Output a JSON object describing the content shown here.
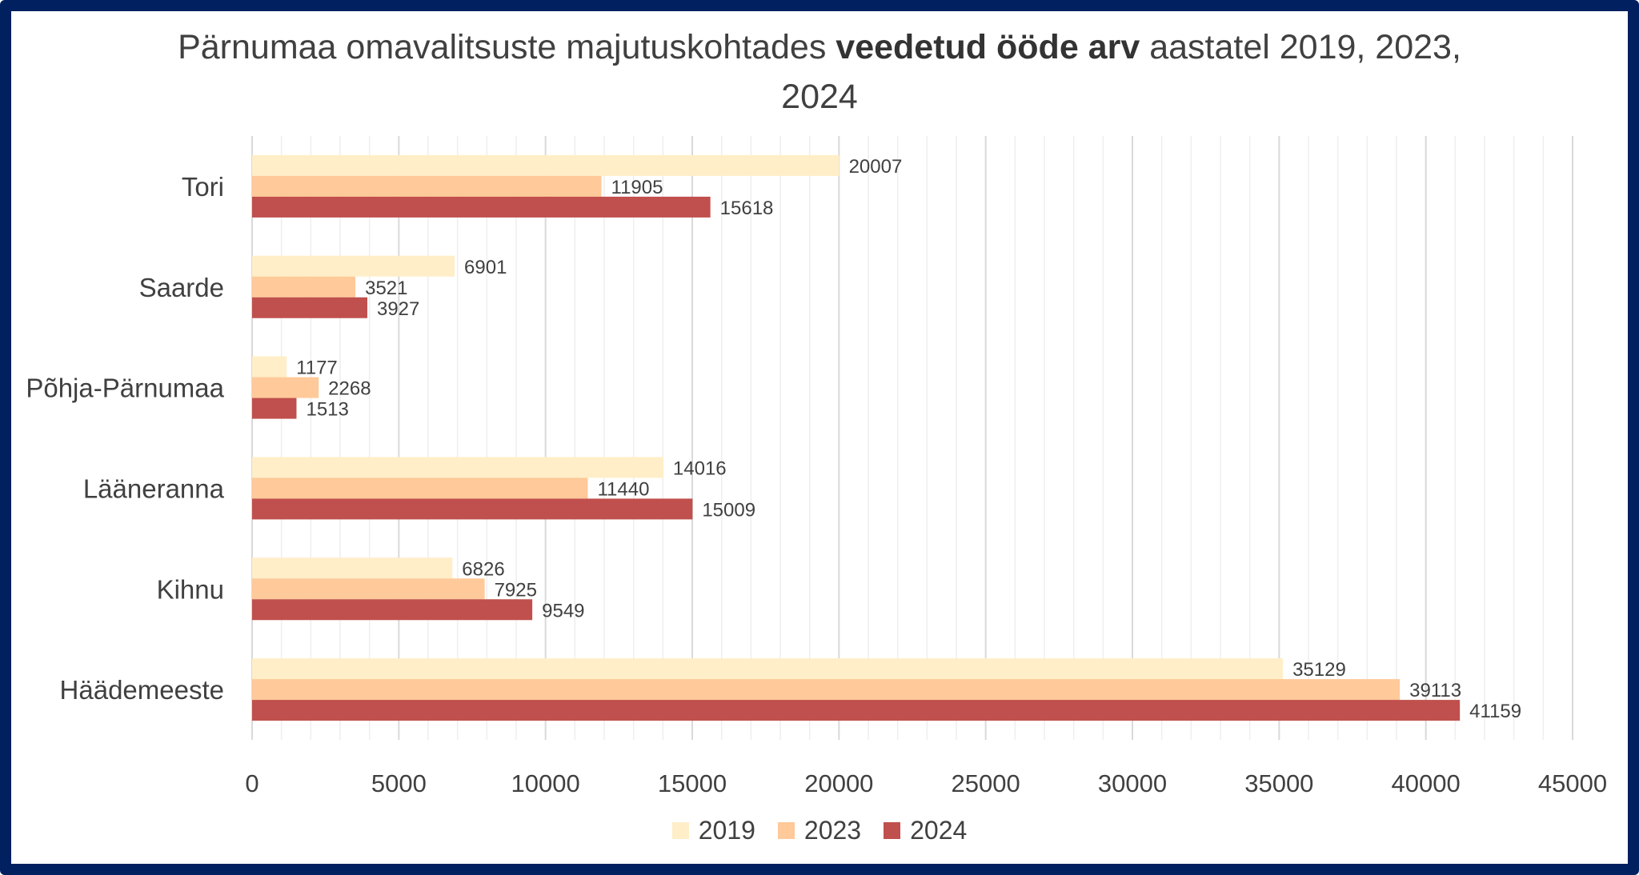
{
  "chart_data": {
    "type": "bar",
    "orientation": "horizontal",
    "title_parts": [
      {
        "text": "Pärnumaa omavalitsuste majutuskohtades ",
        "bold": false
      },
      {
        "text": "veedetud ööde arv",
        "bold": true
      },
      {
        "text": " aastatel 2019, 2023, 2024",
        "bold": false
      }
    ],
    "categories": [
      "Tori",
      "Saarde",
      "Põhja-Pärnumaa",
      "Lääneranna",
      "Kihnu",
      "Häädemeeste"
    ],
    "series": [
      {
        "name": "2019",
        "color": "#FFEEC8",
        "values": [
          20007,
          6901,
          1177,
          14016,
          6826,
          35129
        ]
      },
      {
        "name": "2023",
        "color": "#FFC999",
        "values": [
          11905,
          3521,
          2268,
          11440,
          7925,
          39113
        ]
      },
      {
        "name": "2024",
        "color": "#C0504D",
        "values": [
          15618,
          3927,
          1513,
          15009,
          9549,
          41159
        ]
      }
    ],
    "xlim": [
      0,
      45000
    ],
    "xticks": [
      0,
      5000,
      10000,
      15000,
      20000,
      25000,
      30000,
      35000,
      40000,
      45000
    ],
    "minor_step": 1000,
    "grid": true,
    "legend_position": "bottom",
    "xlabel": "",
    "ylabel": ""
  },
  "frame_color": "#002060"
}
